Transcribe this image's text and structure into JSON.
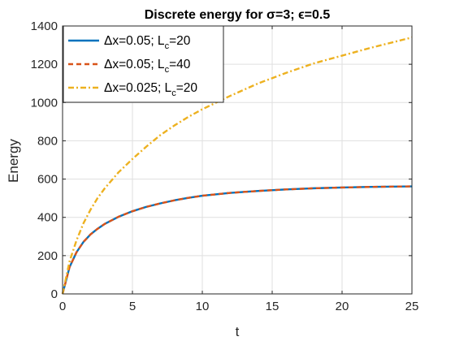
{
  "chart_data": {
    "type": "line",
    "title": "Discrete energy for σ=3; ϵ=0.5",
    "xlabel": "t",
    "ylabel": "Energy",
    "xlim": [
      0,
      25
    ],
    "ylim": [
      0,
      1400
    ],
    "xticks": [
      0,
      5,
      10,
      15,
      20,
      25
    ],
    "yticks": [
      0,
      200,
      400,
      600,
      800,
      1000,
      1200,
      1400
    ],
    "grid": true,
    "legend_position": "top-left",
    "x": [
      0,
      0.5,
      1,
      1.5,
      2,
      2.5,
      3,
      4,
      5,
      6,
      7,
      8,
      9,
      10,
      12,
      14,
      16,
      18,
      20,
      22,
      25
    ],
    "series": [
      {
        "name": "Δx=0.05; L_c=20",
        "legend": {
          "main": "Δx=0.05; L",
          "sub": "c",
          "tail": "=20"
        },
        "color": "#0072BD",
        "style": "solid",
        "values": [
          0,
          140,
          218,
          272,
          311,
          340,
          365,
          403,
          432,
          455,
          473,
          489,
          502,
          513,
          528,
          538,
          546,
          552,
          556,
          559,
          562
        ]
      },
      {
        "name": "Δx=0.05; L_c=40",
        "legend": {
          "main": "Δx=0.05; L",
          "sub": "c",
          "tail": "=40"
        },
        "color": "#D95319",
        "style": "dashed",
        "values": [
          0,
          140,
          218,
          272,
          311,
          340,
          365,
          403,
          432,
          455,
          473,
          489,
          502,
          513,
          528,
          538,
          546,
          552,
          556,
          559,
          562
        ]
      },
      {
        "name": "Δx=0.025; L_c=20",
        "legend": {
          "main": "Δx=0.025; L",
          "sub": "c",
          "tail": "=20"
        },
        "color": "#EDB120",
        "style": "dashdot",
        "values": [
          0,
          170,
          280,
          370,
          440,
          500,
          550,
          635,
          705,
          770,
          830,
          880,
          925,
          965,
          1035,
          1100,
          1155,
          1205,
          1245,
          1285,
          1340
        ]
      }
    ]
  }
}
